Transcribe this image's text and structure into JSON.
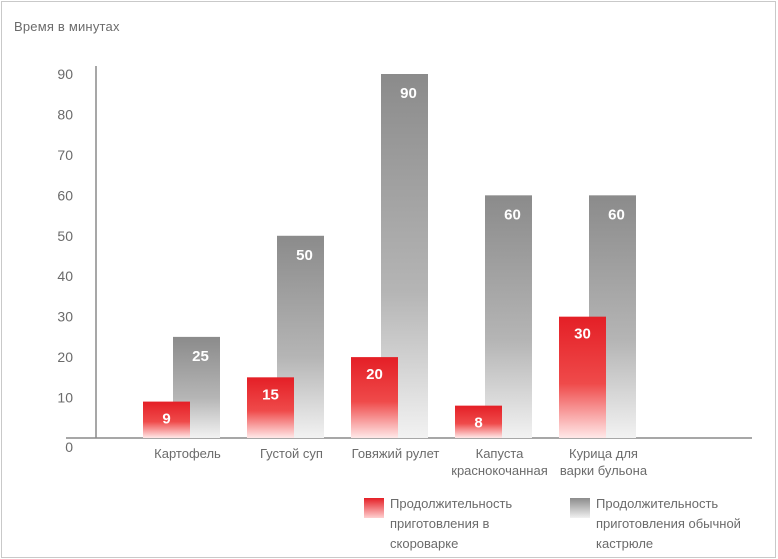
{
  "colors": {
    "fast": "#e41f26",
    "normal": "#8f8f8f",
    "axis": "#8a8a8a",
    "text": "#6b6b6b"
  },
  "chart_data": {
    "type": "bar",
    "ylabel": "Время в минутах",
    "ylim": [
      0,
      90
    ],
    "yticks": [
      "0",
      "10",
      "20",
      "30",
      "40",
      "50",
      "60",
      "70",
      "80",
      "90"
    ],
    "categories": [
      [
        "Картофель"
      ],
      [
        "Густой суп"
      ],
      [
        "Говяжий рулет"
      ],
      [
        "Капуста",
        "краснокочанная"
      ],
      [
        "Курица для",
        "варки бульона"
      ]
    ],
    "series": [
      {
        "name": "Продолжительность приготовления в скороварке",
        "name_lines": [
          "Продолжительность",
          "приготовления в",
          "скороварке"
        ],
        "values": [
          9,
          15,
          20,
          8,
          30
        ]
      },
      {
        "name": "Продолжительность приготовления обычной кастрюле",
        "name_lines": [
          "Продолжительность",
          "приготовления обычной",
          "кастрюле"
        ],
        "values": [
          25,
          50,
          90,
          60,
          60
        ]
      }
    ],
    "grid": false,
    "legend_position": "bottom-right"
  }
}
